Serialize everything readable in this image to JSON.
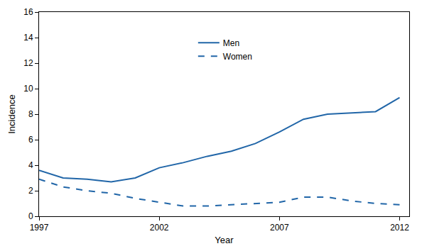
{
  "chart_data": {
    "type": "line",
    "x_label": "Year",
    "y_label": "Incidence",
    "x": [
      1997,
      1998,
      1999,
      2000,
      2001,
      2002,
      2003,
      2004,
      2005,
      2006,
      2007,
      2008,
      2009,
      2010,
      2011,
      2012
    ],
    "series": [
      {
        "name": "Men",
        "color": "#2166a8",
        "line_style": "solid",
        "values": [
          3.6,
          3.0,
          2.9,
          2.7,
          3.0,
          3.8,
          4.2,
          4.7,
          5.1,
          5.7,
          6.6,
          7.6,
          8.0,
          8.1,
          8.2,
          9.3
        ]
      },
      {
        "name": "Women",
        "color": "#2166a8",
        "line_style": "dash",
        "values": [
          2.9,
          2.3,
          2.0,
          1.8,
          1.4,
          1.1,
          0.8,
          0.8,
          0.9,
          1.0,
          1.1,
          1.5,
          1.5,
          1.2,
          1.0,
          0.9
        ]
      }
    ],
    "xlim": [
      1997,
      2012.4
    ],
    "xticks": [
      1997,
      2002,
      2007,
      2012
    ],
    "ylim": [
      0,
      16
    ],
    "yticks": [
      0,
      2,
      4,
      6,
      8,
      10,
      12,
      14,
      16
    ],
    "grid": false,
    "legend": "top"
  }
}
